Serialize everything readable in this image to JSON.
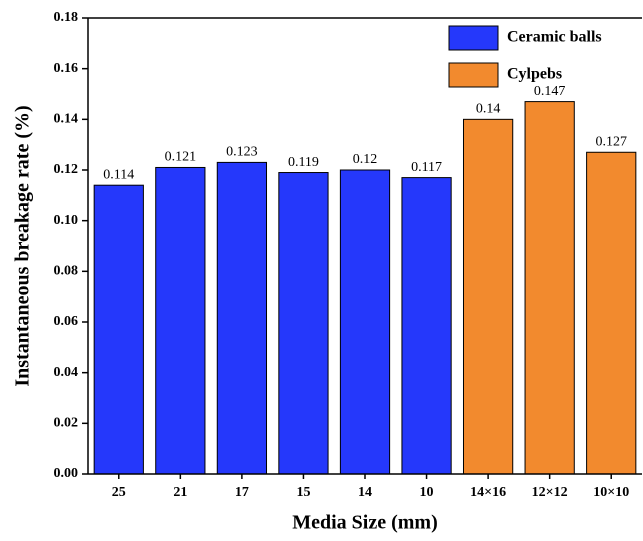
{
  "chart_data": {
    "type": "bar",
    "x_label": "Media Size (mm)",
    "y_label": "Instantaneous breakage rate (%)",
    "categories": [
      "25",
      "21",
      "17",
      "15",
      "14",
      "10",
      "14×16",
      "12×12",
      "10×10"
    ],
    "series": [
      {
        "name": "Ceramic balls",
        "color": "#2538fb",
        "values": [
          0.114,
          0.121,
          0.123,
          0.119,
          0.12,
          0.117,
          null,
          null,
          null
        ]
      },
      {
        "name": "Cylpebs",
        "color": "#f28a2e",
        "values": [
          null,
          null,
          null,
          null,
          null,
          null,
          0.14,
          0.147,
          0.127
        ]
      }
    ],
    "ylim": [
      0,
      0.18
    ],
    "yticks": [
      {
        "value": 0,
        "label": "0.00"
      },
      {
        "value": 0.02,
        "label": "0.02"
      },
      {
        "value": 0.04,
        "label": "0.04"
      },
      {
        "value": 0.06,
        "label": "0.06"
      },
      {
        "value": 0.08,
        "label": "0.08"
      },
      {
        "value": 0.1,
        "label": "0.10"
      },
      {
        "value": 0.12,
        "label": "0.12"
      },
      {
        "value": 0.14,
        "label": "0.14"
      },
      {
        "value": 0.16,
        "label": "0.16"
      },
      {
        "value": 0.18,
        "label": "0.18"
      }
    ],
    "legend": "top-right"
  }
}
